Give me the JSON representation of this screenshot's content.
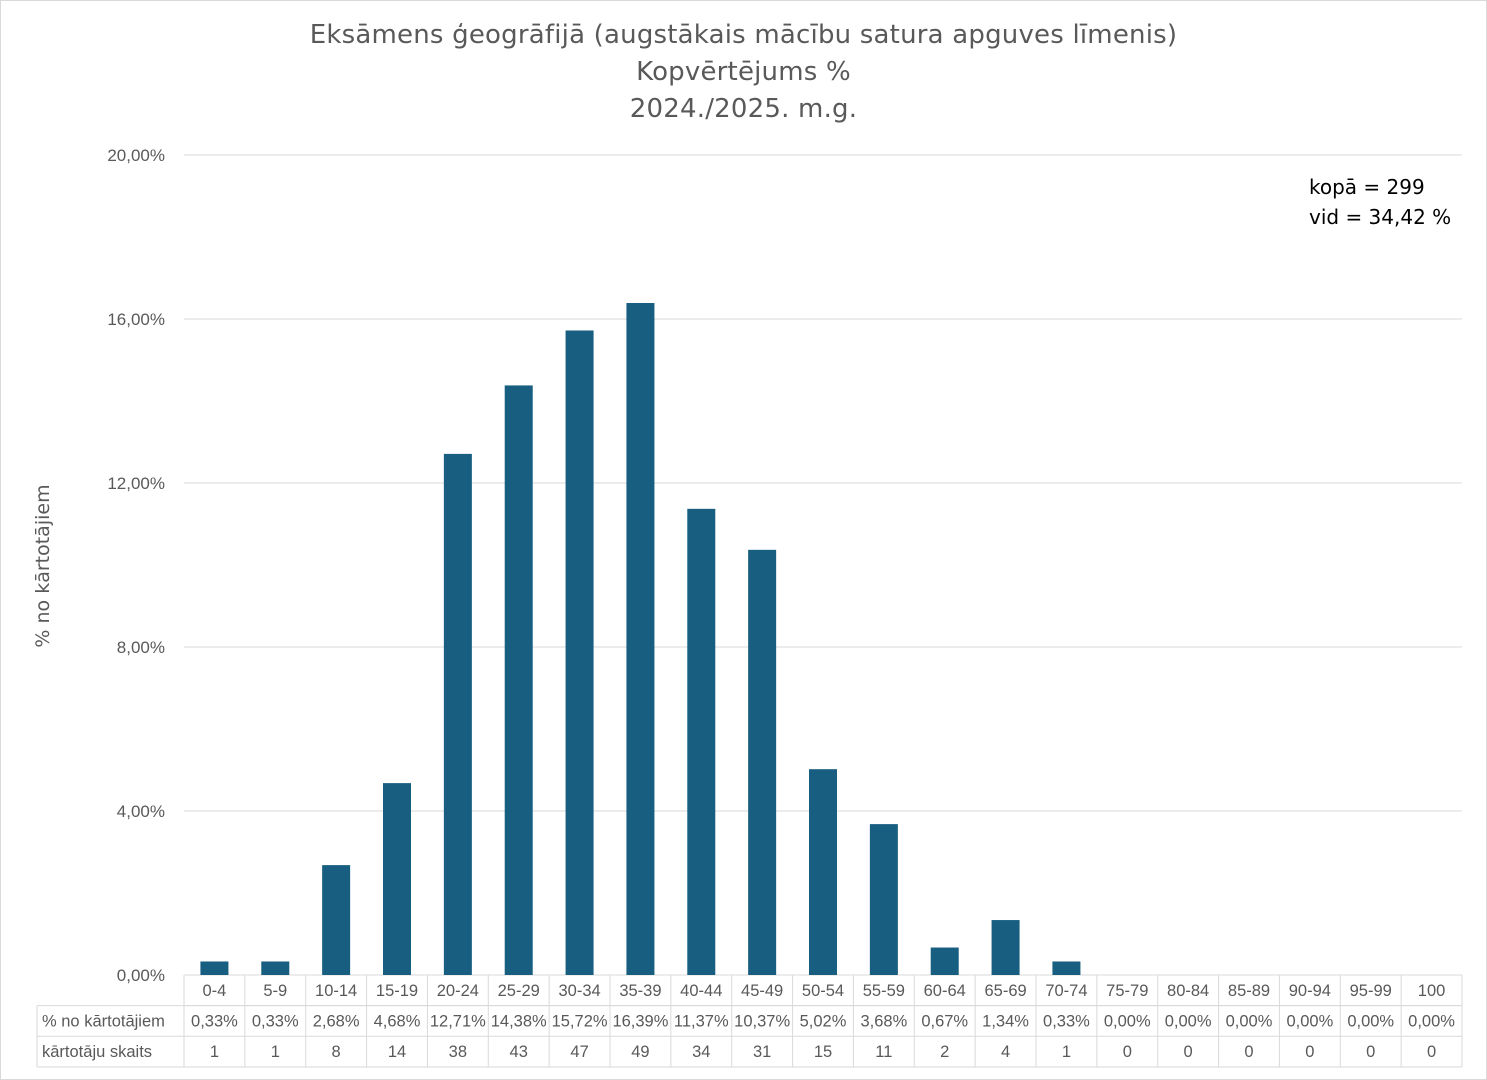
{
  "chart_data": {
    "type": "bar",
    "title": "Eksāmens ģeogrāfijā (augstākais mācību satura apguves līmenis)",
    "subtitle": "Kopvērtējums %",
    "subtitle2": "2024./2025. m.g.",
    "ylabel": "% no kārtotājiem",
    "xlabel": "",
    "ylim": [
      0,
      20
    ],
    "yticks": [
      "0,00%",
      "4,00%",
      "8,00%",
      "12,00%",
      "16,00%",
      "20,00%"
    ],
    "ytick_values": [
      0,
      4,
      8,
      12,
      16,
      20
    ],
    "grid": true,
    "bar_color": "#175E80",
    "categories": [
      "0-4",
      "5-9",
      "10-14",
      "15-19",
      "20-24",
      "25-29",
      "30-34",
      "35-39",
      "40-44",
      "45-49",
      "50-54",
      "55-59",
      "60-64",
      "65-69",
      "70-74",
      "75-79",
      "80-84",
      "85-89",
      "90-94",
      "95-99",
      "100"
    ],
    "values": [
      0.33,
      0.33,
      2.68,
      4.68,
      12.71,
      14.38,
      15.72,
      16.39,
      11.37,
      10.37,
      5.02,
      3.68,
      0.67,
      1.34,
      0.33,
      0,
      0,
      0,
      0,
      0,
      0
    ],
    "table": {
      "row1_label": "% no kārtotājiem",
      "row1": [
        "0,33%",
        "0,33%",
        "2,68%",
        "4,68%",
        "12,71%",
        "14,38%",
        "15,72%",
        "16,39%",
        "11,37%",
        "10,37%",
        "5,02%",
        "3,68%",
        "0,67%",
        "1,34%",
        "0,33%",
        "0,00%",
        "0,00%",
        "0,00%",
        "0,00%",
        "0,00%",
        "0,00%"
      ],
      "row2_label": "kārtotāju skaits",
      "row2": [
        "1",
        "1",
        "8",
        "14",
        "38",
        "43",
        "47",
        "49",
        "34",
        "31",
        "15",
        "11",
        "2",
        "4",
        "1",
        "0",
        "0",
        "0",
        "0",
        "0",
        "0"
      ]
    },
    "annotation": {
      "line1": "kopā = 299",
      "line2": "vid = 34,42 %"
    }
  }
}
